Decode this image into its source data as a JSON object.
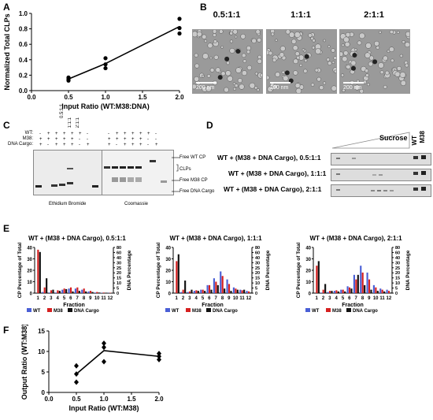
{
  "figure": {
    "panel_labels": [
      "A",
      "B",
      "C",
      "D",
      "E",
      "F"
    ]
  },
  "chart_data": [
    {
      "id": "A",
      "type": "scatter",
      "xlabel": "Input Ratio (WT:M38:DNA)",
      "ylabel": "Normalized Total CLPs",
      "xlim": [
        0,
        2.0
      ],
      "ylim": [
        0,
        1.0
      ],
      "xticks": [
        "0.0",
        "0.5",
        "1.0",
        "1.5",
        "2.0"
      ],
      "yticks": [
        "0.0",
        "0.2",
        "0.4",
        "0.6",
        "0.8",
        "1.0"
      ],
      "points": [
        {
          "x": 0.5,
          "y": 0.13
        },
        {
          "x": 0.5,
          "y": 0.15
        },
        {
          "x": 0.5,
          "y": 0.17
        },
        {
          "x": 1.0,
          "y": 0.29
        },
        {
          "x": 1.0,
          "y": 0.34
        },
        {
          "x": 1.0,
          "y": 0.42
        },
        {
          "x": 2.0,
          "y": 0.74
        },
        {
          "x": 2.0,
          "y": 0.81
        },
        {
          "x": 2.0,
          "y": 0.93
        }
      ],
      "line": [
        {
          "x": 0.5,
          "y": 0.15
        },
        {
          "x": 1.0,
          "y": 0.35
        },
        {
          "x": 2.0,
          "y": 0.83
        }
      ]
    },
    {
      "id": "E1",
      "type": "bar",
      "title": "WT + (M38 + DNA Cargo), 0.5:1:1",
      "xlabel": "Fraction",
      "ylabel": "CP Percentage of Total",
      "ylabel_right": "DNA Percentage",
      "categories": [
        "1",
        "2",
        "3",
        "4",
        "5",
        "6",
        "7",
        "8",
        "9",
        "10",
        "11",
        "12"
      ],
      "ylim": [
        0,
        40
      ],
      "yticks": [
        "0",
        "10",
        "20",
        "30",
        "40"
      ],
      "ylim_right": [
        0,
        80
      ],
      "yticks_right": [
        "0",
        "5",
        "10",
        "15",
        "20",
        "25",
        "30",
        "40",
        "60",
        "80"
      ],
      "series": [
        {
          "name": "WT",
          "color": "#4a5fd6",
          "values": [
            0,
            1,
            0.5,
            0.5,
            3,
            4,
            4,
            3,
            1.5,
            0.5,
            0.3,
            0.2
          ]
        },
        {
          "name": "M38",
          "color": "#d62020",
          "values": [
            38,
            5,
            2.5,
            2.5,
            4,
            5,
            5,
            4,
            2,
            1,
            0.5,
            0.3
          ]
        },
        {
          "name": "DNA Cargo",
          "color": "#111111",
          "values": [
            36,
            13,
            3,
            2,
            3.5,
            1.5,
            2,
            1.5,
            1,
            0.5,
            0.3,
            0.2
          ]
        }
      ],
      "legend": [
        "WT",
        "M38",
        "DNA Cargo"
      ]
    },
    {
      "id": "E2",
      "type": "bar",
      "title": "WT + (M38 + DNA Cargo), 1:1:1",
      "xlabel": "Fraction",
      "ylabel": "CP Percentage of Total",
      "ylabel_right": "DNA Percentage",
      "categories": [
        "1",
        "2",
        "3",
        "4",
        "5",
        "6",
        "7",
        "8",
        "9",
        "10",
        "11",
        "12"
      ],
      "ylim": [
        0,
        40
      ],
      "yticks": [
        "0",
        "10",
        "20",
        "30",
        "40"
      ],
      "ylim_right": [
        0,
        80
      ],
      "yticks_right": [
        "0",
        "5",
        "10",
        "15",
        "20",
        "25",
        "30",
        "40",
        "60",
        "80"
      ],
      "series": [
        {
          "name": "WT",
          "color": "#4a5fd6",
          "values": [
            0,
            1,
            1,
            2,
            3,
            7,
            13,
            19,
            12,
            5,
            3,
            2
          ]
        },
        {
          "name": "M38",
          "color": "#d62020",
          "values": [
            28,
            3,
            1.5,
            2.5,
            3,
            7,
            10,
            15,
            8,
            4,
            2.5,
            1.5
          ]
        },
        {
          "name": "DNA Cargo",
          "color": "#111111",
          "values": [
            34,
            11,
            3,
            2,
            2,
            3,
            7,
            4,
            2,
            3,
            3,
            0.5
          ]
        }
      ],
      "legend": [
        "WT",
        "M38",
        "DNA Cargo"
      ]
    },
    {
      "id": "E3",
      "type": "bar",
      "title": "WT + (M38 + DNA Cargo), 2:1:1",
      "xlabel": "Fraction",
      "ylabel": "CP Percentage of Total",
      "ylabel_right": "DNA Percentage",
      "categories": [
        "1",
        "2",
        "3",
        "4",
        "5",
        "6",
        "7",
        "8",
        "9",
        "10",
        "11",
        "12"
      ],
      "ylim": [
        0,
        40
      ],
      "yticks": [
        "0",
        "10",
        "20",
        "30",
        "40"
      ],
      "ylim_right": [
        0,
        80
      ],
      "yticks_right": [
        "0",
        "5",
        "10",
        "15",
        "20",
        "25",
        "30",
        "40",
        "60",
        "80"
      ],
      "series": [
        {
          "name": "WT",
          "color": "#4a5fd6",
          "values": [
            0,
            0.5,
            1,
            2,
            3,
            6,
            16,
            24,
            18,
            7,
            4,
            3
          ]
        },
        {
          "name": "M38",
          "color": "#d62020",
          "values": [
            24,
            3,
            2,
            2.5,
            3,
            5,
            12,
            18,
            12,
            5,
            3,
            2
          ]
        },
        {
          "name": "DNA Cargo",
          "color": "#111111",
          "values": [
            28,
            8,
            2,
            1.5,
            1.5,
            4,
            16,
            7,
            3,
            2,
            1.5,
            0.5
          ]
        }
      ],
      "legend": [
        "WT",
        "M38",
        "DNA Cargo"
      ]
    },
    {
      "id": "F",
      "type": "scatter",
      "xlabel": "Input Ratio (WT:M38)",
      "ylabel": "Output Ratio (WT:M38)",
      "xlim": [
        0,
        2.0
      ],
      "ylim": [
        0,
        15
      ],
      "xticks": [
        "0.0",
        "0.5",
        "1.0",
        "1.5",
        "2.0"
      ],
      "yticks": [
        "0",
        "5",
        "10",
        "15"
      ],
      "points": [
        {
          "x": 0.5,
          "y": 2.5
        },
        {
          "x": 0.5,
          "y": 4.5
        },
        {
          "x": 0.5,
          "y": 6.5
        },
        {
          "x": 1.0,
          "y": 7.5
        },
        {
          "x": 1.0,
          "y": 11.0
        },
        {
          "x": 1.0,
          "y": 12.0
        },
        {
          "x": 2.0,
          "y": 8.0
        },
        {
          "x": 2.0,
          "y": 8.8
        },
        {
          "x": 2.0,
          "y": 9.5
        }
      ],
      "line": [
        {
          "x": 0.5,
          "y": 4.5
        },
        {
          "x": 1.0,
          "y": 10.2
        },
        {
          "x": 2.0,
          "y": 8.8
        }
      ]
    }
  ],
  "panel_b": {
    "titles": [
      "0.5:1:1",
      "1:1:1",
      "2:1:1"
    ],
    "scale_bar": "200 nm"
  },
  "panel_c": {
    "row_labels": [
      "WT:",
      "M38:",
      "DNA Cargo:"
    ],
    "ratios": [
      "0.5:1:1",
      "1:1:1",
      "2:1:1"
    ],
    "right_labels": [
      "Free WT CP",
      "CLPs",
      "Free M38 CP",
      "Free DNA Cargo"
    ],
    "gel_labels": [
      "Ethidium Bromide",
      "Coomassie"
    ]
  },
  "panel_d": {
    "sucrose": "Sucrose",
    "lane_labels": [
      "WT",
      "M38"
    ],
    "rows": [
      "WT + (M38 + DNA Cargo), 0.5:1:1",
      "WT + (M38 + DNA Cargo), 1:1:1",
      "WT + (M38 + DNA Cargo), 2:1:1"
    ]
  }
}
